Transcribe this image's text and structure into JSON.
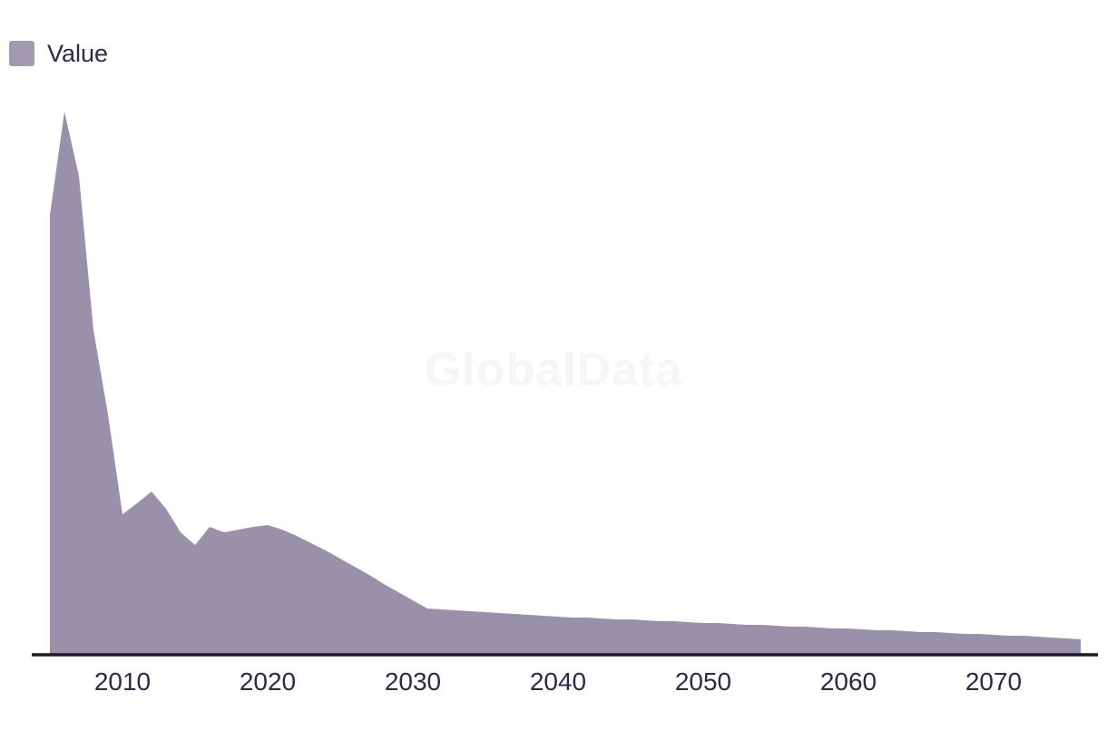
{
  "legend": {
    "label": "Value",
    "swatch_color": "#a29bb0",
    "label_color": "#2b2b44"
  },
  "watermark": {
    "text": "GlobalData",
    "color": "#f6f6f7"
  },
  "chart_data": {
    "type": "area",
    "title": "",
    "xlabel": "",
    "ylabel": "",
    "xlim": [
      2005,
      2076
    ],
    "ylim": [
      0,
      650
    ],
    "grid": false,
    "legend_position": "top-left",
    "axis_line_color": "#1a1a28",
    "tick_label_color": "#2b2b44",
    "x_ticks": [
      2010,
      2020,
      2030,
      2040,
      2050,
      2060,
      2070
    ],
    "x_tick_labels": [
      "2010",
      "2020",
      "2030",
      "2040",
      "2050",
      "2060",
      "2070"
    ],
    "series": [
      {
        "name": "Value",
        "color": "#9891a9",
        "x": [
          2005,
          2006,
          2007,
          2008,
          2009,
          2010,
          2011,
          2012,
          2013,
          2014,
          2015,
          2016,
          2017,
          2018,
          2019,
          2020,
          2021,
          2022,
          2023,
          2024,
          2025,
          2026,
          2027,
          2028,
          2029,
          2030,
          2031,
          2032,
          2033,
          2034,
          2035,
          2036,
          2037,
          2038,
          2039,
          2040,
          2041,
          2042,
          2043,
          2044,
          2045,
          2046,
          2047,
          2048,
          2049,
          2050,
          2051,
          2052,
          2053,
          2054,
          2055,
          2056,
          2057,
          2058,
          2059,
          2060,
          2061,
          2062,
          2063,
          2064,
          2065,
          2066,
          2067,
          2068,
          2069,
          2070,
          2071,
          2072,
          2073,
          2074,
          2075,
          2076
        ],
        "values": [
          485,
          599,
          528,
          358,
          265,
          155,
          167,
          180,
          161,
          135,
          121,
          141,
          135,
          138,
          141,
          143,
          138,
          131,
          123,
          115,
          106,
          97,
          88,
          78,
          69,
          60,
          51,
          50,
          49,
          48,
          47,
          46,
          45,
          44,
          43,
          42,
          41,
          41,
          40,
          39,
          39,
          38,
          37,
          37,
          36,
          35,
          35,
          34,
          33,
          33,
          32,
          31,
          31,
          30,
          29,
          29,
          28,
          27,
          27,
          26,
          25,
          25,
          24,
          23,
          23,
          22,
          21,
          21,
          20,
          19,
          18,
          17
        ]
      }
    ]
  }
}
